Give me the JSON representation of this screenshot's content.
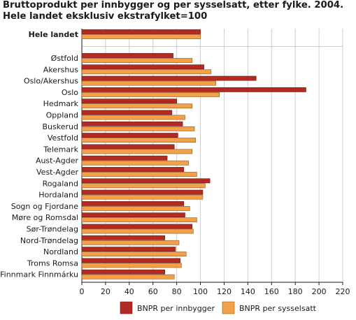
{
  "chart_data": {
    "type": "bar",
    "orientation": "horizontal",
    "title": "Bruttoprodukt per innbygger og per sysselsatt, etter fylke. 2004. Hele landet eksklusiv ekstrafylket=100",
    "categories": [
      "Hele landet",
      "Østfold",
      "Akershus",
      "Oslo/Akershus",
      "Oslo",
      "Hedmark",
      "Oppland",
      "Buskerud",
      "Vestfold",
      "Telemark",
      "Aust-Agder",
      "Vest-Agder",
      "Rogaland",
      "Hordaland",
      "Sogn og Fjordane",
      "Møre og Romsdal",
      "Sør-Trøndelag",
      "Nord-Trøndelag",
      "Nordland",
      "Troms Romsa",
      "Finnmark Finnmárku"
    ],
    "bold_categories": [
      "Hele landet"
    ],
    "series": [
      {
        "name": "BNPR per innbygger",
        "color": "#b22a22",
        "values": [
          100,
          77,
          103,
          147,
          189,
          80,
          76,
          85,
          81,
          78,
          72,
          86,
          108,
          102,
          86,
          87,
          93,
          70,
          79,
          83,
          70
        ]
      },
      {
        "name": "BNPR per sysselsatt",
        "color": "#f2a04a",
        "values": [
          100,
          93,
          109,
          113,
          116,
          93,
          87,
          95,
          96,
          93,
          90,
          97,
          104,
          102,
          91,
          97,
          94,
          82,
          88,
          84,
          78
        ]
      }
    ],
    "xlim": [
      0,
      220
    ],
    "xticks": [
      0,
      20,
      40,
      60,
      80,
      100,
      120,
      140,
      160,
      180,
      200,
      220
    ],
    "grid": "vertical",
    "legend": "bottom"
  }
}
